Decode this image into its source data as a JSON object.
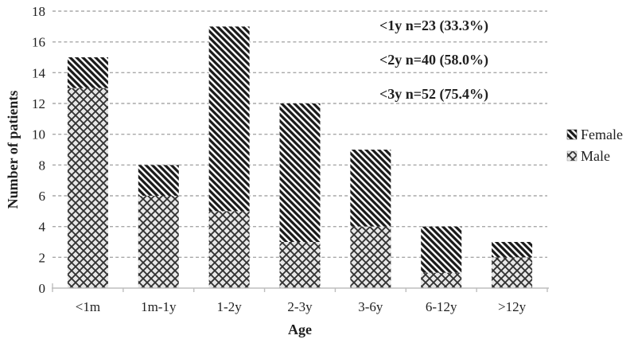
{
  "chart_data": {
    "type": "bar",
    "stacked": true,
    "title": "",
    "xlabel": "Age",
    "ylabel": "Number of patients",
    "categories": [
      "<1m",
      "1m-1y",
      "1-2y",
      "2-3y",
      "3-6y",
      "6-12y",
      ">12y"
    ],
    "series": [
      {
        "name": "Male",
        "pattern": "crosshatch-diamond",
        "fill": "#e7e7e7",
        "values": [
          13,
          6,
          5,
          3,
          4,
          1,
          2
        ]
      },
      {
        "name": "Female",
        "pattern": "diagonal-stripes",
        "fill": "#fcfcfc",
        "values": [
          2,
          2,
          12,
          9,
          5,
          3,
          1
        ]
      }
    ],
    "totals": [
      15,
      8,
      17,
      12,
      9,
      4,
      3
    ],
    "ylim": [
      0,
      18
    ],
    "ytick_step": 2,
    "grid": "dashed horizontal",
    "legend_position": "right",
    "legend": [
      "Female",
      "Male"
    ],
    "annotations": [
      "<1y n=23 (33.3%)",
      "<2y n=40 (58.0%)",
      "<3y n=52 (75.4%)"
    ]
  },
  "colors": {
    "background": "#ffffff",
    "gridline": "#a8a8a8",
    "axis_line": "#bdbdbd",
    "hatch_dark": "#1a1a1a",
    "crosshatch_line": "#2f2f2f",
    "male_background": "#e7e7e7",
    "female_background": "#fcfcfc",
    "text": "#1f1f1f"
  }
}
